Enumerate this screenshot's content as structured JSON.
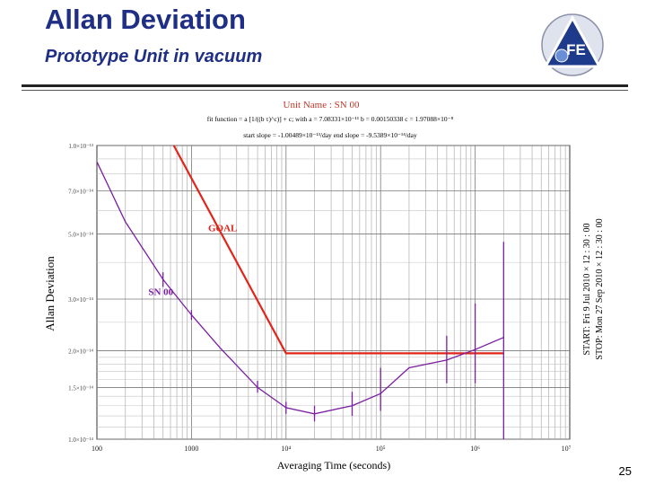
{
  "slide": {
    "title": "Allan Deviation",
    "subtitle": "Prototype Unit in vacuum",
    "page_number": "25",
    "logo_text": "FE"
  },
  "chart_data": {
    "type": "line",
    "title": "Unit Name : SN 00",
    "header_lines": [
      "fit function = a [1/((b τ)^c)] + c;  with a = 7.08331×10⁻¹¹  b = 0.00150338  c = 1.97088×10⁻⁸",
      "start slope = -1.00489×10⁻¹³/day          end slope = -9.5389×10⁻¹⁴/day"
    ],
    "xlabel": "Averaging Time (seconds)",
    "ylabel": "Allan Deviation",
    "x_scale": "log",
    "y_scale": "log",
    "xlim": [
      100,
      10000000
    ],
    "ylim": [
      1e-14,
      1e-13
    ],
    "x_ticks": [
      {
        "value": 100,
        "label": "100"
      },
      {
        "value": 1000,
        "label": "1000"
      },
      {
        "value": 10000,
        "label": "10⁴"
      },
      {
        "value": 100000,
        "label": "10⁵"
      },
      {
        "value": 1000000,
        "label": "10⁶"
      },
      {
        "value": 10000000,
        "label": "10⁷"
      }
    ],
    "y_ticks": [
      {
        "value": 1e-13,
        "label": "1.0×10⁻¹³"
      },
      {
        "value": 7e-14,
        "label": "7.0×10⁻¹⁴"
      },
      {
        "value": 5e-14,
        "label": "5.0×10⁻¹⁴"
      },
      {
        "value": 3e-14,
        "label": "3.0×10⁻¹⁴"
      },
      {
        "value": 2e-14,
        "label": "2.0×10⁻¹⁴"
      },
      {
        "value": 1.5e-14,
        "label": "1.5×10⁻¹⁴"
      },
      {
        "value": 1e-14,
        "label": "1.0×10⁻¹⁴"
      }
    ],
    "grid": true,
    "series": [
      {
        "name": "GOAL",
        "color": "#e0251b",
        "points": [
          [
            650,
            1e-13
          ],
          [
            10000,
            1.96e-14
          ],
          [
            2000000,
            1.96e-14
          ]
        ]
      },
      {
        "name": "SN 00",
        "color": "#7b1fa2",
        "points": [
          [
            100,
            8.8e-14
          ],
          [
            200,
            5.5e-14
          ],
          [
            500,
            3.5e-14
          ],
          [
            1000,
            2.65e-14
          ],
          [
            2000,
            2.05e-14
          ],
          [
            5000,
            1.5e-14
          ],
          [
            10000,
            1.28e-14
          ],
          [
            20000,
            1.22e-14
          ],
          [
            50000,
            1.3e-14
          ],
          [
            100000,
            1.43e-14
          ],
          [
            200000,
            1.75e-14
          ],
          [
            500000,
            1.86e-14
          ],
          [
            1000000,
            2.02e-14
          ],
          [
            2000000,
            2.22e-14
          ]
        ],
        "error_bars": [
          {
            "x": 500,
            "low": 3.3e-14,
            "high": 3.7e-14
          },
          {
            "x": 1000,
            "low": 2.55e-14,
            "high": 2.75e-14
          },
          {
            "x": 5000,
            "low": 1.44e-14,
            "high": 1.58e-14
          },
          {
            "x": 10000,
            "low": 1.22e-14,
            "high": 1.34e-14
          },
          {
            "x": 20000,
            "low": 1.15e-14,
            "high": 1.3e-14
          },
          {
            "x": 50000,
            "low": 1.2e-14,
            "high": 1.45e-14
          },
          {
            "x": 100000,
            "low": 1.25e-14,
            "high": 1.75e-14
          },
          {
            "x": 500000,
            "low": 1.55e-14,
            "high": 2.25e-14
          },
          {
            "x": 1000000,
            "low": 1.55e-14,
            "high": 2.9e-14
          },
          {
            "x": 2000000,
            "low": 1e-14,
            "high": 4.7e-14
          }
        ]
      }
    ],
    "annotations": [
      {
        "text": "GOAL",
        "color": "#e0251b",
        "x": 1500,
        "y": 5.1e-14
      },
      {
        "text": "SN 00",
        "color": "#7b1fa2",
        "x": 350,
        "y": 3.1e-14
      }
    ],
    "side_labels": [
      "START:  Fri 9 Jul 2010 × 12 : 30 : 00",
      "STOP:  Mon 27 Sep 2010 × 12 : 30 : 00"
    ]
  }
}
